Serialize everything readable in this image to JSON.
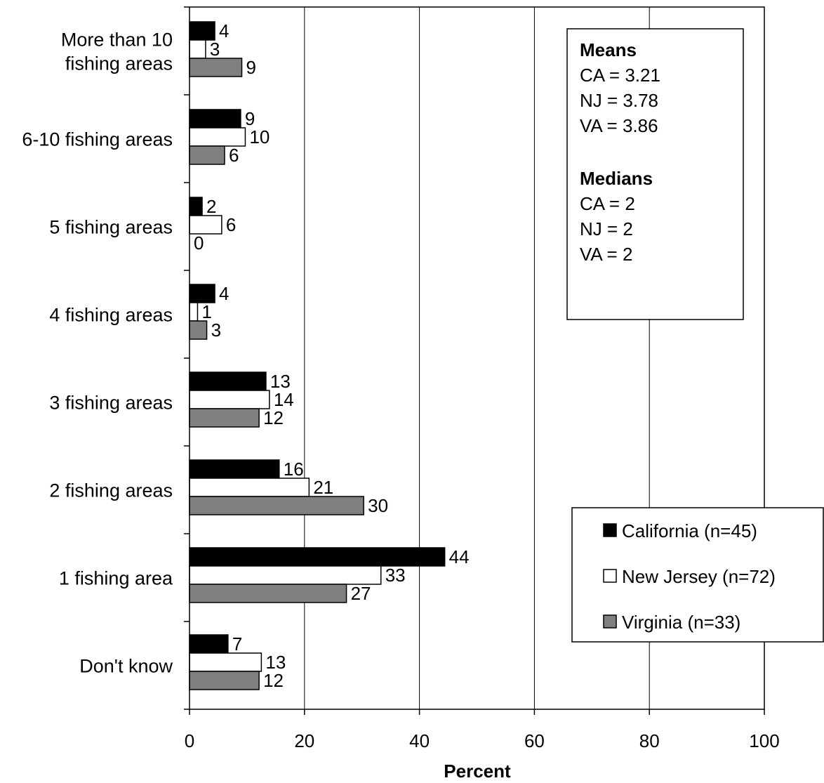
{
  "chart_data": {
    "type": "bar",
    "orientation": "horizontal",
    "categories": [
      [
        "More than 10",
        "fishing areas"
      ],
      [
        "6-10 fishing areas"
      ],
      [
        "5 fishing areas"
      ],
      [
        "4 fishing areas"
      ],
      [
        "3 fishing areas"
      ],
      [
        "2 fishing areas"
      ],
      [
        "1 fishing area"
      ],
      [
        "Don't know"
      ]
    ],
    "series": [
      {
        "name": "California (n=45)",
        "color": "#000000",
        "values": [
          4.4,
          8.9,
          2.2,
          4.4,
          13.3,
          15.6,
          44.4,
          6.7
        ],
        "labels": [
          "4",
          "9",
          "2",
          "4",
          "13",
          "16",
          "44",
          "7"
        ]
      },
      {
        "name": "New Jersey (n=72)",
        "color": "#ffffff",
        "values": [
          2.8,
          9.7,
          5.6,
          1.4,
          13.9,
          20.8,
          33.3,
          12.5
        ],
        "labels": [
          "3",
          "10",
          "6",
          "1",
          "14",
          "21",
          "33",
          "13"
        ]
      },
      {
        "name": "Virginia (n=33)",
        "color": "#808080",
        "values": [
          9.1,
          6.1,
          0,
          3.0,
          12.1,
          30.3,
          27.3,
          12.1
        ],
        "labels": [
          "9",
          "6",
          "0",
          "3",
          "12",
          "30",
          "27",
          "12"
        ]
      }
    ],
    "xlabel": "Percent",
    "ylabel": "",
    "xlim": [
      0,
      100
    ],
    "xticks": [
      "0",
      "20",
      "40",
      "60",
      "80",
      "100"
    ],
    "grid": "vertical",
    "legend": "bottom-right"
  },
  "stats_box": {
    "means_heading": "Means",
    "means": [
      "CA = 3.21",
      "NJ = 3.78",
      "VA = 3.86"
    ],
    "medians_heading": "Medians",
    "medians": [
      "CA = 2",
      "NJ = 2",
      "VA = 2"
    ]
  }
}
